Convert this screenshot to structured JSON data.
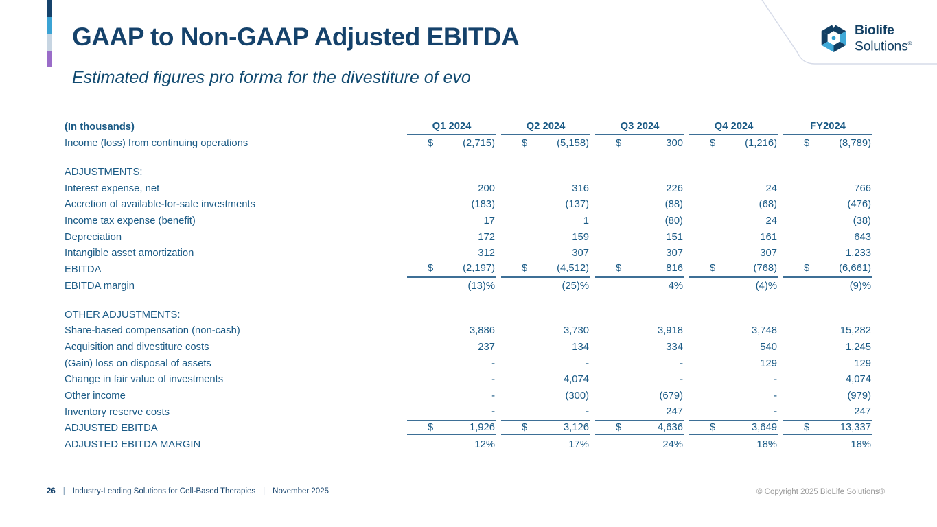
{
  "slide": {
    "title": "GAAP to Non-GAAP Adjusted EBITDA",
    "subtitle": "Estimated figures pro forma for the divestiture of evo"
  },
  "logo": {
    "name_line1": "Biolife",
    "name_line2": "Solutions",
    "registered": "®"
  },
  "theme": {
    "accent_bar": [
      "#15426b",
      "#3ba3d4",
      "#c7d5e2",
      "#9a6cc8"
    ],
    "title_color": "#15426b",
    "table_text_color": "#1a5a85",
    "rule_color": "#3d6f96",
    "logo_navy": "#123f63",
    "logo_light_blue": "#3fa9d8",
    "copyright_gray": "#9a9a9a"
  },
  "table": {
    "note": "(In thousands)",
    "currency_symbol": "$",
    "columns": [
      "Q1 2024",
      "Q2 2024",
      "Q3 2024",
      "Q4 2024",
      "FY2024"
    ],
    "rows": [
      {
        "label": "Income (loss) from continuing operations",
        "dollar": true,
        "values": [
          "(2,715)",
          "(5,158)",
          "300",
          "(1,216)",
          "(8,789)"
        ]
      },
      {
        "spacer": true
      },
      {
        "label": "ADJUSTMENTS:",
        "section": true
      },
      {
        "label": "Interest expense, net",
        "values": [
          "200",
          "316",
          "226",
          "24",
          "766"
        ]
      },
      {
        "label": "Accretion of available-for-sale investments",
        "values": [
          "(183)",
          "(137)",
          "(88)",
          "(68)",
          "(476)"
        ]
      },
      {
        "label": "Income tax expense (benefit)",
        "values": [
          "17",
          "1",
          "(80)",
          "24",
          "(38)"
        ]
      },
      {
        "label": "Depreciation",
        "values": [
          "172",
          "159",
          "151",
          "161",
          "643"
        ]
      },
      {
        "label": "Intangible asset amortization",
        "values": [
          "312",
          "307",
          "307",
          "307",
          "1,233"
        ],
        "rule_below": true
      },
      {
        "label": "EBITDA",
        "dollar": true,
        "values": [
          "(2,197)",
          "(4,512)",
          "816",
          "(768)",
          "(6,661)"
        ],
        "double_below": true
      },
      {
        "label": "EBITDA margin",
        "values": [
          "(13)%",
          "(25)%",
          "4%",
          "(4)%",
          "(9)%"
        ]
      },
      {
        "spacer": true
      },
      {
        "label": "OTHER ADJUSTMENTS:",
        "section": true
      },
      {
        "label": "Share-based compensation (non-cash)",
        "values": [
          "3,886",
          "3,730",
          "3,918",
          "3,748",
          "15,282"
        ]
      },
      {
        "label": "Acquisition and divestiture costs",
        "values": [
          "237",
          "134",
          "334",
          "540",
          "1,245"
        ]
      },
      {
        "label": "(Gain) loss on disposal of assets",
        "values": [
          "-",
          "-",
          "-",
          "129",
          "129"
        ]
      },
      {
        "label": "Change in fair value of investments",
        "values": [
          "-",
          "4,074",
          "-",
          "-",
          "4,074"
        ]
      },
      {
        "label": "Other income",
        "values": [
          "-",
          "(300)",
          "(679)",
          "-",
          "(979)"
        ]
      },
      {
        "label": "Inventory reserve costs",
        "values": [
          "-",
          "-",
          "247",
          "-",
          "247"
        ],
        "rule_below": true
      },
      {
        "label": "ADJUSTED EBITDA",
        "dollar": true,
        "values": [
          "1,926",
          "3,126",
          "4,636",
          "3,649",
          "13,337"
        ],
        "double_below": true
      },
      {
        "label": "ADJUSTED EBITDA MARGIN",
        "values": [
          "12%",
          "17%",
          "24%",
          "18%",
          "18%"
        ]
      }
    ]
  },
  "footer": {
    "page_number": "26",
    "separator": "|",
    "tagline": "Industry-Leading Solutions for Cell-Based Therapies",
    "date": "November 2025",
    "copyright": "© Copyright 2025 BioLife Solutions®"
  }
}
